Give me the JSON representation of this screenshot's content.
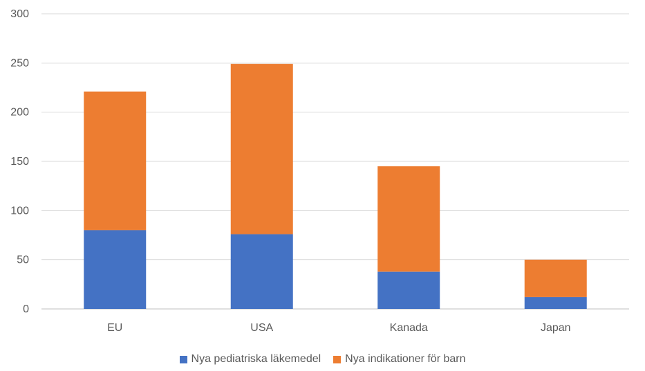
{
  "chart_data": {
    "type": "bar",
    "stacked": true,
    "categories": [
      "EU",
      "USA",
      "Kanada",
      "Japan"
    ],
    "series": [
      {
        "name": "Nya pediatriska läkemedel",
        "values": [
          80,
          76,
          38,
          12
        ],
        "color": "#4472C4"
      },
      {
        "name": "Nya indikationer för barn",
        "values": [
          141,
          173,
          107,
          38
        ],
        "color": "#ED7D31"
      }
    ],
    "ylim": [
      0,
      300
    ],
    "yticks": [
      0,
      50,
      100,
      150,
      200,
      250,
      300
    ],
    "grid": true,
    "legend_position": "bottom"
  }
}
